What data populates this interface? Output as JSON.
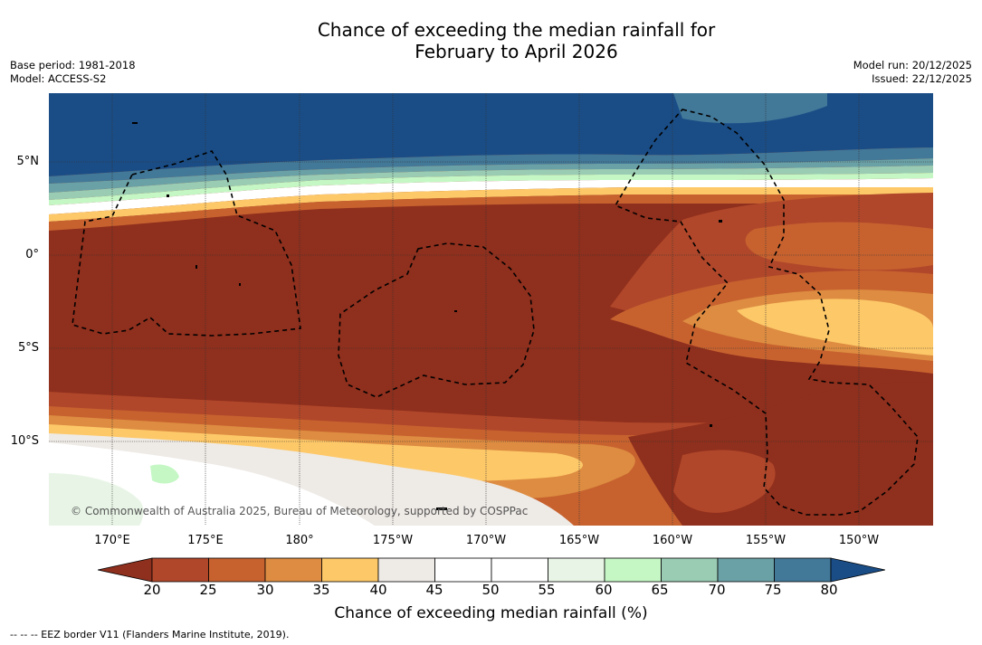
{
  "title": {
    "line1": "Chance of exceeding the median rainfall for",
    "line2": "February to April 2026"
  },
  "meta": {
    "base_period": "Base period: 1981-2018",
    "model": "Model: ACCESS-S2",
    "model_run": "Model run: 20/12/2025",
    "issued": "Issued: 22/12/2025"
  },
  "map": {
    "latitude_labels": [
      "5°N",
      "0°",
      "5°S",
      "10°S"
    ],
    "longitude_labels": [
      "170°E",
      "175°E",
      "180°",
      "175°W",
      "170°W",
      "165°W",
      "160°W",
      "155°W",
      "150°W"
    ],
    "copyright": "© Commonwealth of Australia 2025, Bureau of Meteorology, supported by COSPPac",
    "eez_border_style": "dashed black"
  },
  "colorbar": {
    "label": "Chance of exceeding median rainfall (%)",
    "ticks": [
      "20",
      "25",
      "30",
      "35",
      "40",
      "45",
      "50",
      "55",
      "60",
      "65",
      "70",
      "75",
      "80"
    ],
    "colors": [
      "#8f2f1d",
      "#b0472a",
      "#c7622f",
      "#dd8c41",
      "#fdc868",
      "#eeeae6",
      "#ffffff",
      "#ffffff",
      "#e8f5e6",
      "#c5f7c5",
      "#9accb4",
      "#6aa1a6",
      "#427898",
      "#1a4d86"
    ]
  },
  "footnote": "-- -- -- EEZ border V11 (Flanders Marine Institute, 2019)."
}
